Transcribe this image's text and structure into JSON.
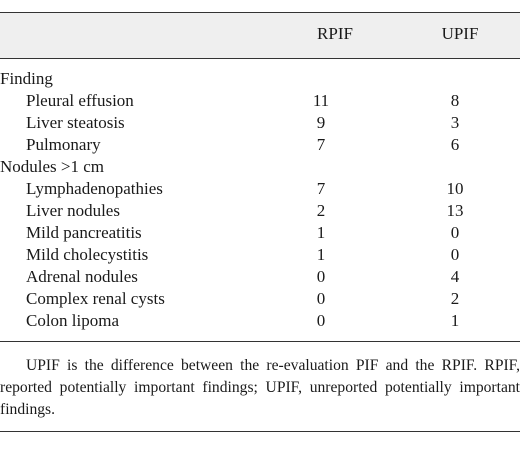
{
  "table": {
    "headers": {
      "rpif": "RPIF",
      "upif": "UPIF"
    },
    "rows": [
      {
        "label": "Finding",
        "rpif": "",
        "upif": "",
        "kind": "group"
      },
      {
        "label": "Pleural effusion",
        "rpif": "11",
        "upif": "8",
        "kind": "item"
      },
      {
        "label": "Liver steatosis",
        "rpif": "9",
        "upif": "3",
        "kind": "item"
      },
      {
        "label": "Pulmonary",
        "rpif": "7",
        "upif": "6",
        "kind": "item"
      },
      {
        "label": "Nodules >1 cm",
        "rpif": "",
        "upif": "",
        "kind": "group"
      },
      {
        "label": "Lymphadenopathies",
        "rpif": "7",
        "upif": "10",
        "kind": "item"
      },
      {
        "label": "Liver nodules",
        "rpif": "2",
        "upif": "13",
        "kind": "item"
      },
      {
        "label": "Mild pancreatitis",
        "rpif": "1",
        "upif": "0",
        "kind": "item"
      },
      {
        "label": "Mild cholecystitis",
        "rpif": "1",
        "upif": "0",
        "kind": "item"
      },
      {
        "label": "Adrenal nodules",
        "rpif": "0",
        "upif": "4",
        "kind": "item"
      },
      {
        "label": "Complex renal cysts",
        "rpif": "0",
        "upif": "2",
        "kind": "item"
      },
      {
        "label": "Colon lipoma",
        "rpif": "0",
        "upif": "1",
        "kind": "item"
      }
    ],
    "footnote": "UPIF is the difference between the re-evaluation PIF and the RPIF. RPIF, reported potentially important findings; UPIF, unreported potentially important findings."
  }
}
